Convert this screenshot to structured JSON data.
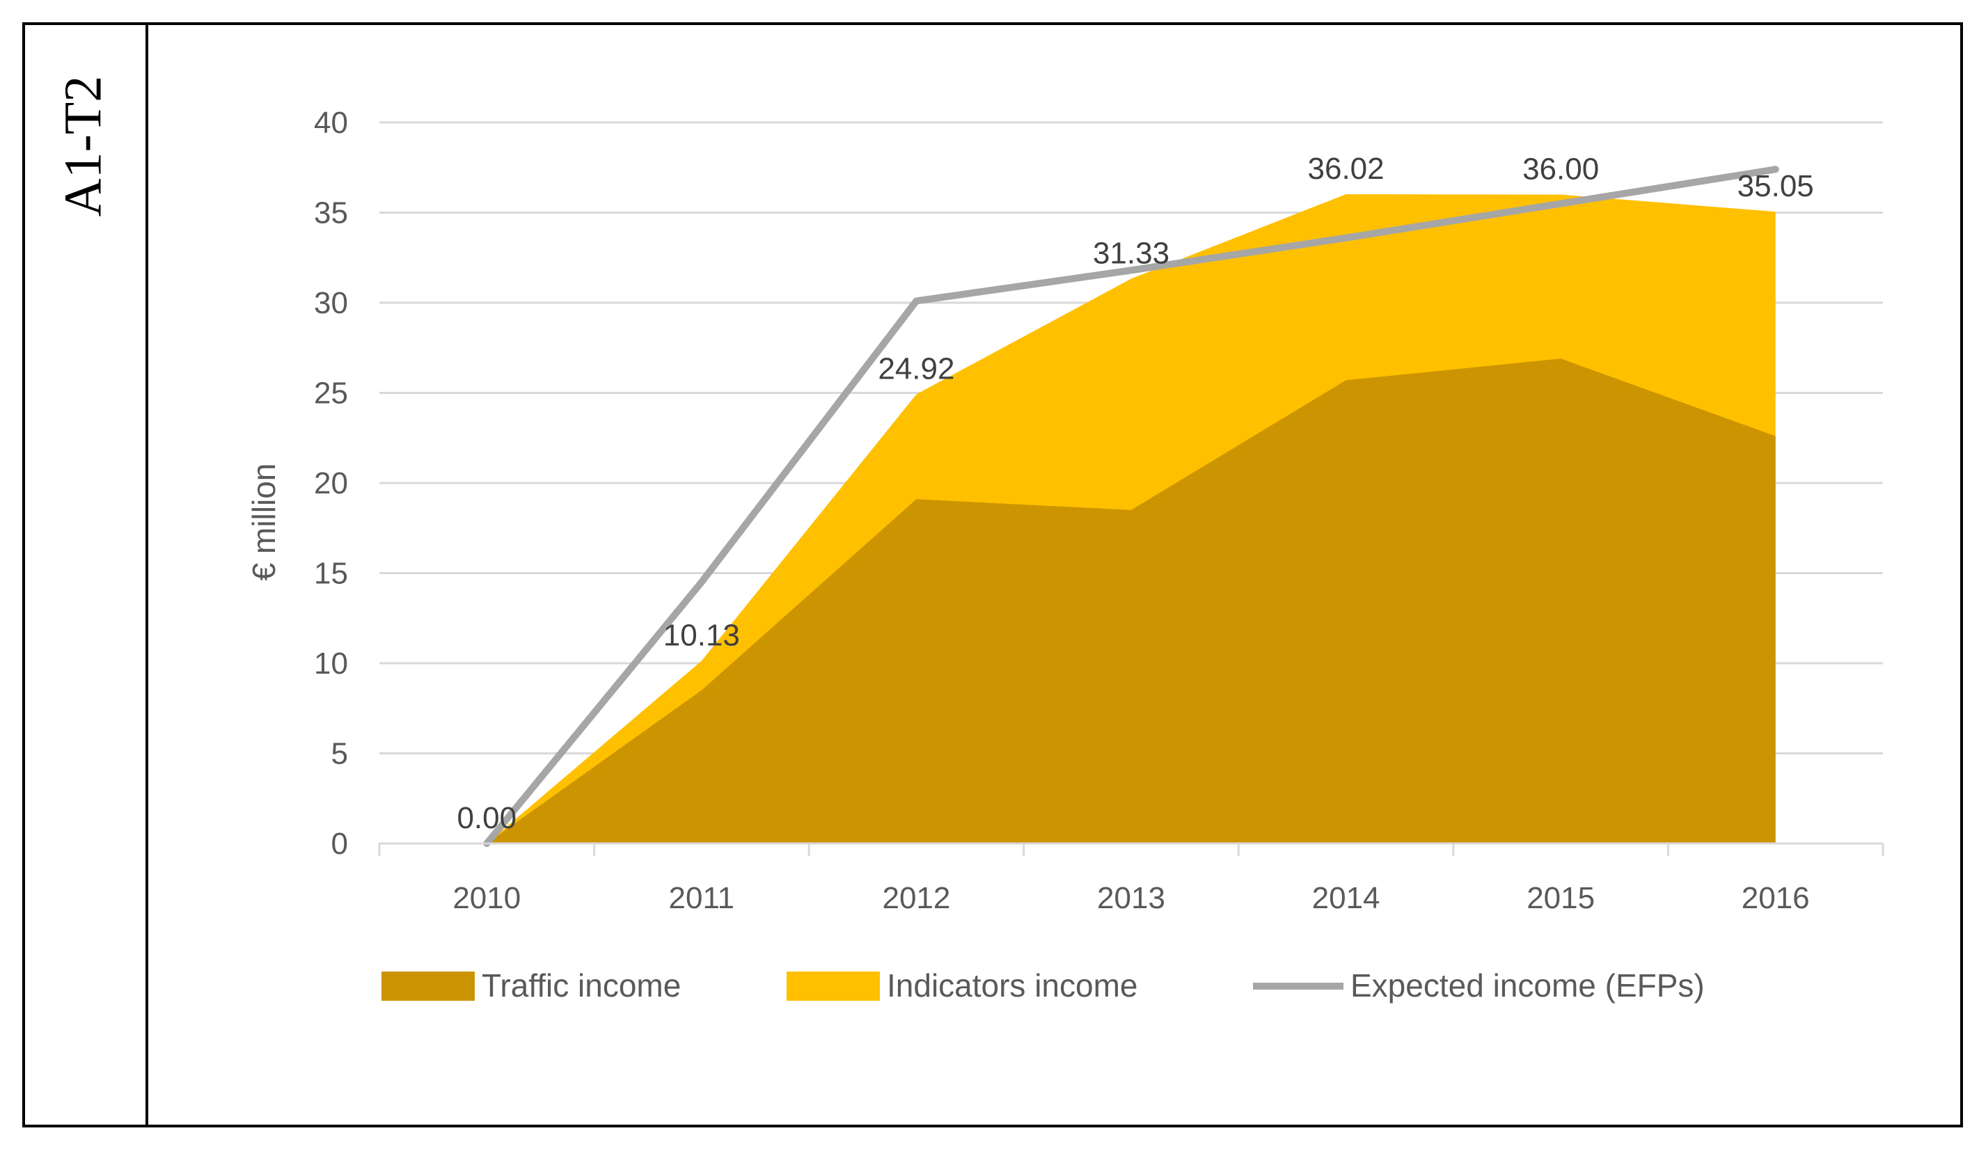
{
  "panel_label": "A1-T2",
  "chart_data": {
    "type": "area",
    "title": "",
    "xlabel": "",
    "ylabel": "€ million",
    "ylim": [
      0,
      40
    ],
    "yticks": [
      0,
      5,
      10,
      15,
      20,
      25,
      30,
      35,
      40
    ],
    "grid": true,
    "legend_position": "bottom",
    "categories": [
      "2010",
      "2011",
      "2012",
      "2013",
      "2014",
      "2015",
      "2016"
    ],
    "series": [
      {
        "name": "Traffic income",
        "kind": "stacked-area",
        "color": "#cc9400",
        "values": [
          0.0,
          8.5,
          19.1,
          18.5,
          25.7,
          26.9,
          22.6
        ]
      },
      {
        "name": "Indicators income",
        "kind": "stacked-area",
        "color": "#ffc000",
        "values": [
          0.0,
          1.63,
          5.82,
          12.83,
          10.32,
          9.1,
          12.45
        ]
      },
      {
        "name": "Expected income (EFPs)",
        "kind": "line",
        "color": "#a6a6a6",
        "values": [
          0.0,
          14.5,
          30.1,
          31.8,
          33.6,
          35.5,
          37.4
        ]
      }
    ],
    "data_labels": [
      "0.00",
      "10.13",
      "24.92",
      "31.33",
      "36.02",
      "36.00",
      "35.05"
    ]
  }
}
